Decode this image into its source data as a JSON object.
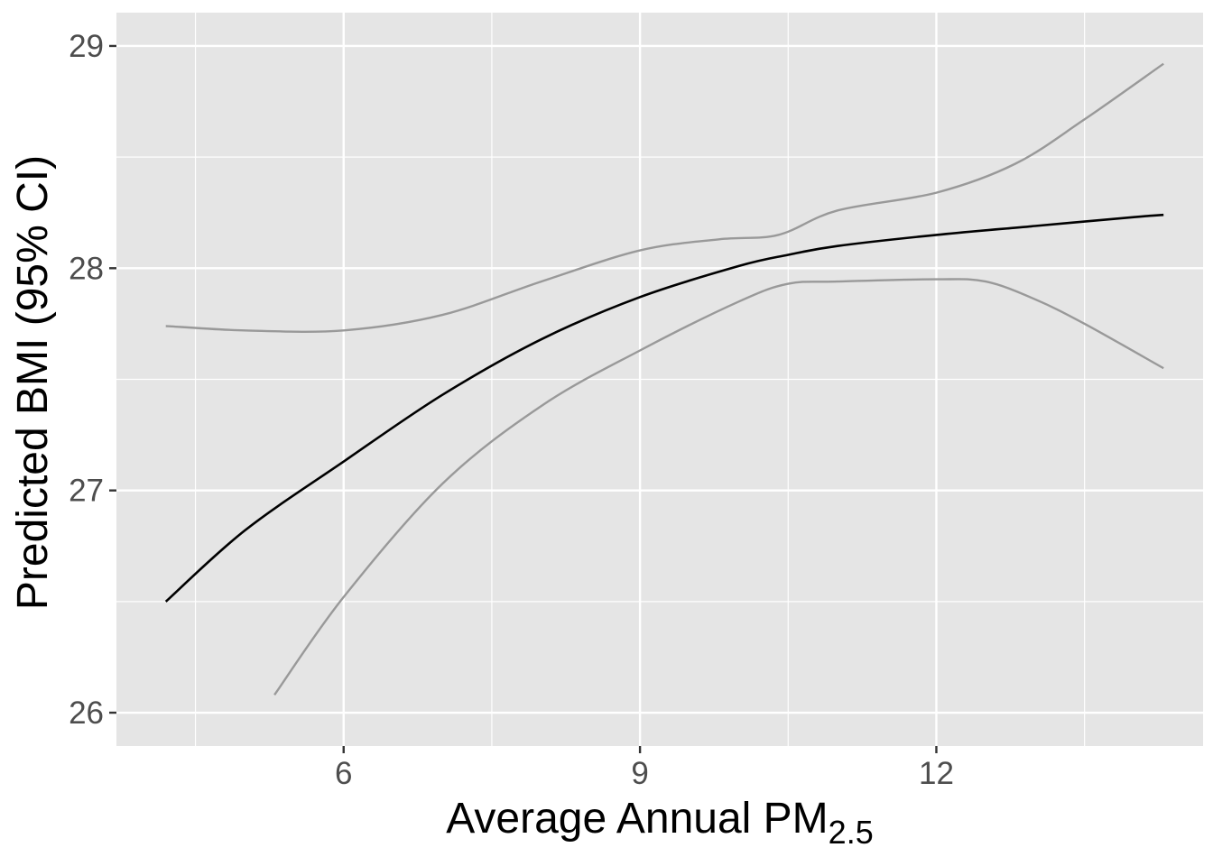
{
  "chart_data": {
    "type": "line",
    "xlabel": "Average Annual PM",
    "xlabel_subscript": "2.5",
    "ylabel": "Predicted BMI (95% CI)",
    "xlim": [
      3.7,
      14.7
    ],
    "ylim": [
      25.85,
      29.15
    ],
    "x_ticks": [
      6,
      9,
      12
    ],
    "x_tick_labels": [
      "6",
      "9",
      "12"
    ],
    "x_minor_ticks": [
      4.5,
      7.5,
      10.5,
      13.5
    ],
    "y_ticks": [
      26,
      27,
      28,
      29
    ],
    "y_tick_labels": [
      "26",
      "27",
      "28",
      "29"
    ],
    "y_minor_ticks": [
      26.5,
      27.5,
      28.5
    ],
    "grid": true,
    "background": "#e5e5e5",
    "series": [
      {
        "role": "estimate",
        "color": "#000000",
        "x": [
          4.2,
          5.0,
          6.0,
          7.0,
          8.0,
          9.0,
          10.0,
          10.5,
          11.0,
          12.0,
          13.0,
          14.0,
          14.3
        ],
        "y": [
          26.5,
          26.82,
          27.13,
          27.43,
          27.68,
          27.87,
          28.01,
          28.06,
          28.1,
          28.15,
          28.19,
          28.23,
          28.24
        ]
      },
      {
        "role": "upper-ci",
        "color": "#999999",
        "x": [
          4.2,
          5.0,
          6.0,
          7.0,
          8.0,
          9.0,
          9.8,
          10.4,
          11.0,
          12.0,
          12.8,
          13.5,
          14.3
        ],
        "y": [
          27.74,
          27.72,
          27.72,
          27.79,
          27.94,
          28.08,
          28.13,
          28.15,
          28.26,
          28.34,
          28.47,
          28.67,
          28.92
        ]
      },
      {
        "role": "lower-ci",
        "color": "#999999",
        "x": [
          5.3,
          6.0,
          7.0,
          8.0,
          9.0,
          10.0,
          10.5,
          11.0,
          12.0,
          12.5,
          13.0,
          13.5,
          14.3
        ],
        "y": [
          26.08,
          26.52,
          27.03,
          27.38,
          27.63,
          27.85,
          27.93,
          27.94,
          27.95,
          27.94,
          27.86,
          27.75,
          27.55
        ]
      }
    ]
  }
}
